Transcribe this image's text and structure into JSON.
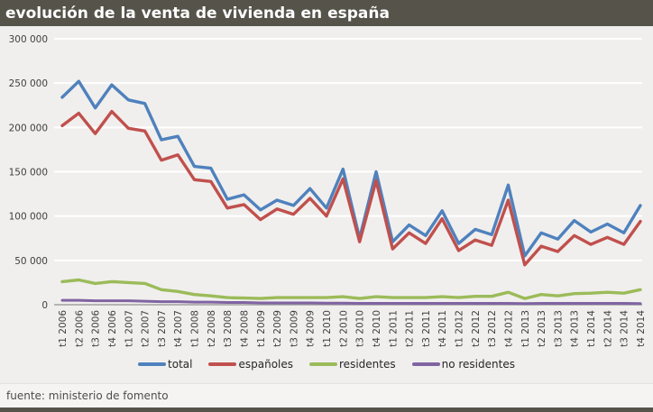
{
  "title": "evolución de la venta de vivienda en españa",
  "footer": {
    "source": "fuente: ministerio de fomento"
  },
  "colors": {
    "titlebar_bg": "#55534a",
    "chart_bg": "#f0efed",
    "footer_bg": "#f5f4f2",
    "gridline": "#ffffff",
    "axis_line": "#a0a0a0",
    "tick_text": "#3f3f3f",
    "title_text": "#ffffff",
    "total": "#4f81bd",
    "espanoles": "#c0504d",
    "residentes": "#9bbb59",
    "no_residentes": "#8064a2"
  },
  "chart_data": {
    "type": "line",
    "title": "evolución de la venta de vivienda en españa",
    "xlabel": "",
    "ylabel": "",
    "ylim": [
      0,
      300000
    ],
    "ytick_step": 50000,
    "ytick_labels": [
      "0",
      "50 000",
      "100 000",
      "150 000",
      "200 000",
      "250 000",
      "300 000"
    ],
    "grid": true,
    "legend_position": "bottom",
    "categories": [
      "t1 2006",
      "t2 2006",
      "t3 2006",
      "t4 2006",
      "t1 2007",
      "t2 2007",
      "t3 2007",
      "t4 2007",
      "t1 2008",
      "t2 2008",
      "t3 2008",
      "t4 2008",
      "t1 2009",
      "t2 2009",
      "t3 2009",
      "t4 2009",
      "t1 2010",
      "t2 2010",
      "t3 2010",
      "t4 2010",
      "t1 2011",
      "t2 2011",
      "t3 2011",
      "t4 2011",
      "t1 2012",
      "t2 2012",
      "t3 2012",
      "t4 2012",
      "t1 2013",
      "t2 2013",
      "t3 2013",
      "t4 2013",
      "t1 2014",
      "t2 2014",
      "t3 2014",
      "t4 2014"
    ],
    "series": [
      {
        "name": "total",
        "color_key": "total",
        "values": [
          234000,
          252000,
          222000,
          248000,
          231000,
          227000,
          186000,
          190000,
          156000,
          154000,
          119000,
          124000,
          107000,
          118000,
          112000,
          131000,
          109000,
          153000,
          75000,
          150000,
          71000,
          90000,
          78000,
          106000,
          69000,
          85000,
          79000,
          135000,
          55000,
          81000,
          74000,
          95000,
          82000,
          91000,
          81000,
          112000
        ]
      },
      {
        "name": "españoles",
        "color_key": "espanoles",
        "values": [
          202000,
          216000,
          193000,
          218000,
          199000,
          196000,
          163000,
          169000,
          141000,
          139000,
          109000,
          113000,
          96000,
          108000,
          102000,
          120000,
          100000,
          142000,
          71000,
          140000,
          63000,
          81000,
          69000,
          97000,
          61000,
          73000,
          67000,
          118000,
          45000,
          66000,
          60000,
          78000,
          68000,
          76000,
          68000,
          94000
        ]
      },
      {
        "name": "residentes",
        "color_key": "residentes",
        "values": [
          26000,
          28000,
          24000,
          26000,
          25000,
          24000,
          17000,
          15000,
          11500,
          10000,
          8000,
          7500,
          7000,
          8000,
          8000,
          8000,
          8000,
          9000,
          7000,
          9000,
          8000,
          8000,
          8000,
          9000,
          8000,
          9500,
          9500,
          14000,
          7000,
          11500,
          10000,
          12500,
          13000,
          14000,
          13000,
          17000
        ]
      },
      {
        "name": "no residentes",
        "color_key": "no_residentes",
        "values": [
          5000,
          5000,
          4500,
          4500,
          4500,
          4000,
          3500,
          3500,
          3000,
          3000,
          2500,
          2500,
          2000,
          2000,
          2000,
          2000,
          1800,
          1800,
          1500,
          1500,
          1500,
          1500,
          1500,
          1500,
          1500,
          1500,
          1500,
          1500,
          1200,
          1500,
          1500,
          1500,
          1500,
          1500,
          1500,
          1200
        ]
      }
    ]
  }
}
